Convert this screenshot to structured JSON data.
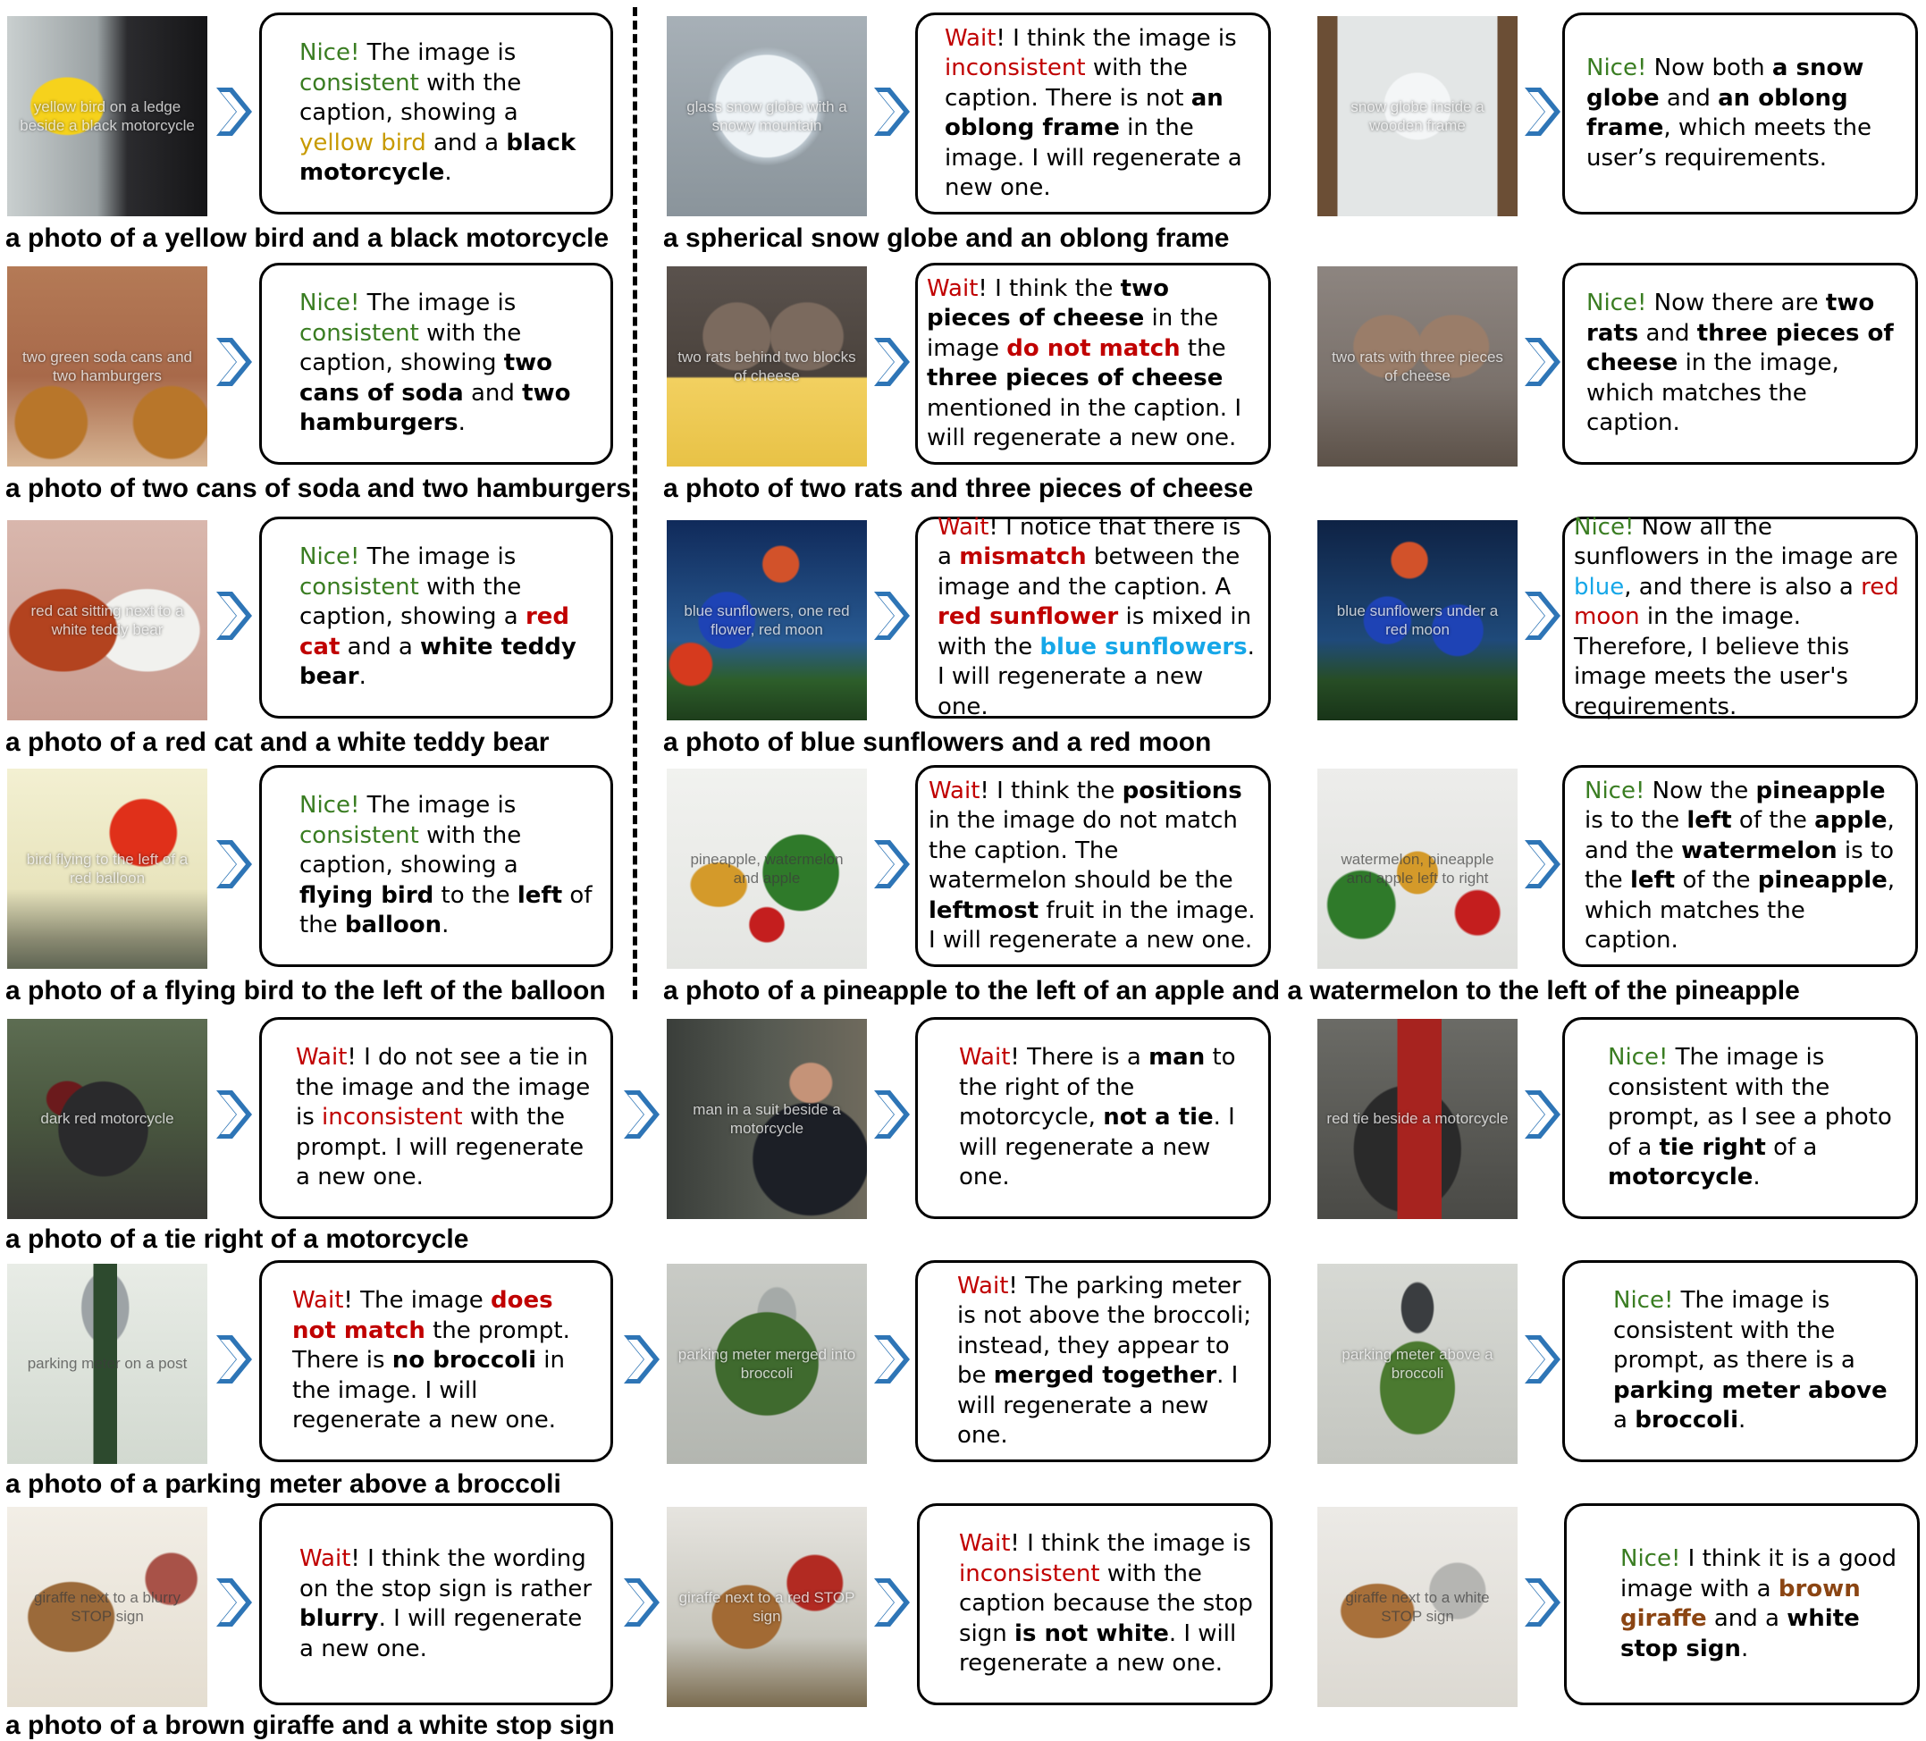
{
  "colors": {
    "nice": "#3a7d22",
    "wait": "#c00000",
    "yellow": "#c79a00",
    "blue": "#16a7e8",
    "brown": "#8b4513",
    "arrow": "#2e75b6"
  },
  "rows": [
    {
      "caption": "a photo of a yellow bird and a black motorcycle",
      "left_image": "yellow bird on a ledge beside a black motorcycle",
      "left_bubble": [
        "Nice!",
        " The image is ",
        "consistent",
        " with the caption, showing a ",
        "yellow bird",
        " and a ",
        "black motorcycle",
        "."
      ]
    },
    {
      "caption": "a photo of two cans of soda and two hamburgers",
      "left_image": "two green soda cans and two hamburgers",
      "left_bubble": [
        "Nice!",
        " The image is ",
        "consistent",
        " with the caption, showing ",
        "two cans of soda",
        " and ",
        "two hamburgers",
        "."
      ]
    },
    {
      "caption": "a photo of a red cat and a white teddy bear",
      "left_image": "red cat sitting next to a white teddy bear",
      "left_bubble": [
        "Nice!",
        " The image is ",
        "consistent",
        " with the caption, showing a ",
        "red cat",
        " and a ",
        "white teddy bear",
        "."
      ]
    },
    {
      "caption": "a photo of a flying bird to the left of the balloon",
      "left_image": "bird flying to the left of a red balloon",
      "left_bubble": [
        "Nice!",
        " The image is ",
        "consistent",
        " with the caption, showing a ",
        "flying bird",
        " to the ",
        "left",
        " of the ",
        "balloon",
        "."
      ]
    }
  ],
  "right_rows": [
    {
      "caption": "a spherical snow globe and an oblong frame",
      "img1": "glass snow globe with a snowy mountain",
      "bubble1": [
        "Wait",
        "! I think the image is ",
        "inconsistent",
        " with the caption. There is not ",
        "an oblong frame",
        " in the image. I will regenerate a new one."
      ],
      "img2": "snow globe inside a wooden frame",
      "bubble2": [
        "Nice!",
        " Now both ",
        "a snow globe",
        " and ",
        "an oblong frame",
        ", which meets the user’s requirements."
      ]
    },
    {
      "caption": "a photo of two rats and three pieces of cheese",
      "img1": "two rats behind two blocks of cheese",
      "bubble1": [
        "Wait",
        "! I think the ",
        "two pieces of cheese",
        " in the image ",
        "do not match",
        " the ",
        "three pieces of cheese",
        " mentioned in the caption. I will regenerate a new one."
      ],
      "img2": "two rats with three pieces of cheese",
      "bubble2": [
        "Nice!",
        " Now there are ",
        "two rats",
        " and ",
        "three pieces of cheese",
        " in the image, which matches the caption."
      ]
    },
    {
      "caption": "a photo of blue sunflowers and a red moon",
      "img1": "blue sunflowers, one red flower, red moon",
      "bubble1": [
        "Wait",
        "! I notice that there is a ",
        "mismatch",
        " between the image and the caption. A ",
        "red sunflower",
        " is mixed in with the ",
        "blue sunflowers",
        ". I will regenerate a new one."
      ],
      "img2": "blue sunflowers under a red moon",
      "bubble2": [
        "Nice!",
        " Now all the sunflowers in the image are ",
        "blue",
        ", and there is also a ",
        "red moon",
        " in the image. Therefore, I believe this image meets the user's requirements."
      ]
    },
    {
      "caption": "a photo of a pineapple to the left of an apple and a watermelon to the left of the pineapple",
      "img1": "pineapple, watermelon and apple",
      "bubble1": [
        "Wait",
        "! I think the ",
        "positions",
        " in the image do not match the caption. The watermelon should be the ",
        "leftmost",
        " fruit in the image. I will regenerate a new one."
      ],
      "img2": "watermelon, pineapple and apple left to right",
      "bubble2": [
        "Nice!",
        " Now the ",
        "pineapple",
        " is to the ",
        "left",
        " of the ",
        "apple",
        ", and the ",
        "watermelon",
        " is to the ",
        "left",
        " of the ",
        "pineapple",
        ", which matches the caption."
      ]
    }
  ],
  "full_rows": [
    {
      "caption": "a photo of a tie right of a motorcycle",
      "img1": "dark red motorcycle",
      "bubble1": [
        "Wait",
        "! I do not see a tie in the image and the image is ",
        "inconsistent",
        " with the prompt. I will regenerate a new one."
      ],
      "img2": "man in a suit beside a motorcycle",
      "bubble2": [
        "Wait",
        "! There is a ",
        "man",
        " to the right of the motorcycle, ",
        "not a tie",
        ". I will regenerate a new one."
      ],
      "img3": "red tie beside a motorcycle",
      "bubble3": [
        "Nice!",
        " The image is consistent with the prompt, as I see a photo of a ",
        "tie right",
        " of a ",
        "motorcycle",
        "."
      ]
    },
    {
      "caption": "a photo of a parking meter above a broccoli",
      "img1": "parking meter on a post",
      "bubble1": [
        "Wait",
        "! The image ",
        "does not match",
        " the prompt. There is ",
        "no broccoli",
        " in the image. I will regenerate a new one."
      ],
      "img2": "parking meter merged into broccoli",
      "bubble2": [
        "Wait",
        "! The parking meter is not above the broccoli; instead, they appear to be ",
        "merged together",
        ". I will regenerate a new one."
      ],
      "img3": "parking meter above a broccoli",
      "bubble3": [
        "Nice!",
        " The image is consistent with the prompt, as there is a ",
        "parking meter above",
        " a ",
        "broccoli",
        "."
      ]
    },
    {
      "caption": "a photo of a brown giraffe and a white stop sign",
      "img1": "giraffe next to a blurry STOP sign",
      "bubble1": [
        "Wait",
        "! I think the wording on the stop sign is rather ",
        "blurry",
        ". I will regenerate a new one."
      ],
      "img2": "giraffe next to a red STOP sign",
      "bubble2": [
        "Wait",
        "! I think the image is ",
        "inconsistent",
        " with the caption because the stop sign ",
        "is not white",
        ". I will regenerate a new one."
      ],
      "img3": "giraffe next to a white STOP sign",
      "bubble3": [
        "Nice!",
        " I think it is a good image with a ",
        "brown giraffe",
        " and a ",
        "white stop sign",
        "."
      ]
    }
  ]
}
